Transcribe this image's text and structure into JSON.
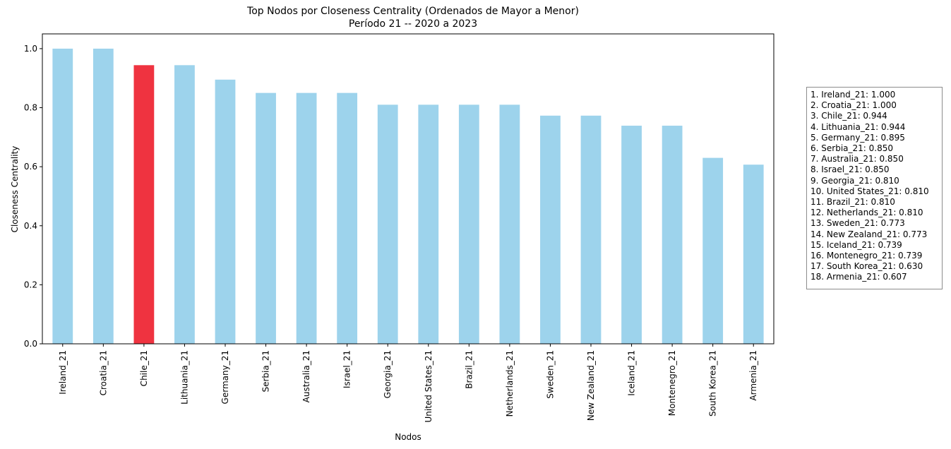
{
  "chart_data": {
    "type": "bar",
    "title": "Top Nodos por Closeness Centrality (Ordenados de Mayor a Menor)",
    "subtitle": "Período 21 -- 2020 a 2023",
    "xlabel": "Nodos",
    "ylabel": "Closeness Centrality",
    "ylim": [
      0,
      1.05
    ],
    "yticks": [
      "0.0",
      "0.2",
      "0.4",
      "0.6",
      "0.8",
      "1.0"
    ],
    "grid": false,
    "categories": [
      "Ireland_21",
      "Croatia_21",
      "Chile_21",
      "Lithuania_21",
      "Germany_21",
      "Serbia_21",
      "Australia_21",
      "Israel_21",
      "Georgia_21",
      "United States_21",
      "Brazil_21",
      "Netherlands_21",
      "Sweden_21",
      "New Zealand_21",
      "Iceland_21",
      "Montenegro_21",
      "South Korea_21",
      "Armenia_21"
    ],
    "values": [
      1.0,
      1.0,
      0.944,
      0.944,
      0.895,
      0.85,
      0.85,
      0.85,
      0.81,
      0.81,
      0.81,
      0.81,
      0.773,
      0.773,
      0.739,
      0.739,
      0.63,
      0.607
    ],
    "highlight_category": "Chile_21",
    "colors": {
      "bar": "#9dd3ec",
      "highlight": "#ef3340"
    },
    "legend_placement": "right",
    "legend": [
      "1. Ireland_21: 1.000",
      "2. Croatia_21: 1.000",
      "3. Chile_21: 0.944",
      "4. Lithuania_21: 0.944",
      "5. Germany_21: 0.895",
      "6. Serbia_21: 0.850",
      "7. Australia_21: 0.850",
      "8. Israel_21: 0.850",
      "9. Georgia_21: 0.810",
      "10. United States_21: 0.810",
      "11. Brazil_21: 0.810",
      "12. Netherlands_21: 0.810",
      "13. Sweden_21: 0.773",
      "14. New Zealand_21: 0.773",
      "15. Iceland_21: 0.739",
      "16. Montenegro_21: 0.739",
      "17. South Korea_21: 0.630",
      "18. Armenia_21: 0.607"
    ]
  }
}
